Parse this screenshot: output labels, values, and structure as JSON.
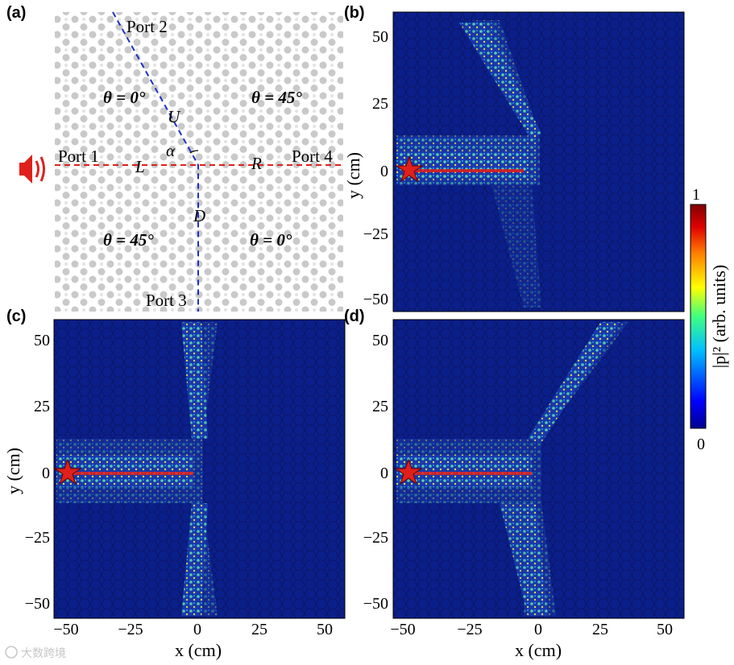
{
  "figure": {
    "panel_labels": [
      "(a)",
      "(b)",
      "(c)",
      "(d)"
    ],
    "ports": {
      "p1": "Port 1",
      "p2": "Port 2",
      "p3": "Port 3",
      "p4": "Port 4"
    },
    "domains": {
      "ul": "θ = 0°",
      "ur": "θ = 45°",
      "ll": "θ = 45°",
      "lr": "θ = 0°"
    },
    "branch_labels": {
      "up": "U",
      "left": "L",
      "right": "R",
      "down": "D",
      "angle": "α"
    },
    "colorbar": {
      "max_label": "1",
      "min_label": "0",
      "label": "|p|² (arb. units)",
      "colors": [
        "#00008f",
        "#0040ff",
        "#00c0ff",
        "#40ff80",
        "#ffff00",
        "#ff8000",
        "#c00000",
        "#800000"
      ]
    },
    "axes": {
      "xlabel": "x (cm)",
      "ylabel": "y (cm)",
      "xticks": [
        "−50",
        "−25",
        "0",
        "25",
        "50"
      ],
      "yticks": [
        "50",
        "25",
        "0",
        "−25",
        "−50"
      ]
    },
    "watermark": "大数跨境",
    "colors": {
      "background": "#0b1f8a",
      "wave": "#31b6e0",
      "source": "#e0201b",
      "guide_red": "#e0201b",
      "guide_blue": "#1c2fc7",
      "lattice": "#c8c8c8"
    }
  },
  "chart_data": [
    {
      "type": "heatmap",
      "panel": "(b)",
      "title": "",
      "xlabel": "",
      "ylabel": "y (cm)",
      "xlim": [
        -60,
        60
      ],
      "ylim": [
        -55,
        60
      ],
      "source": [
        -50,
        0
      ],
      "path": "input Port 1 → Port 2 (upper-left branch)",
      "vmin": 0,
      "vmax": 1
    },
    {
      "type": "heatmap",
      "panel": "(c)",
      "title": "",
      "xlabel": "x (cm)",
      "ylabel": "y (cm)",
      "xlim": [
        -60,
        60
      ],
      "ylim": [
        -55,
        60
      ],
      "source": [
        -50,
        0
      ],
      "path": "input Port 1 → Port 2 and Port 3",
      "vmin": 0,
      "vmax": 1
    },
    {
      "type": "heatmap",
      "panel": "(d)",
      "title": "",
      "xlabel": "x (cm)",
      "ylabel": "",
      "xlim": [
        -60,
        60
      ],
      "ylim": [
        -55,
        60
      ],
      "source": [
        -50,
        0
      ],
      "path": "input Port 1 → upper-right and lower-left branches",
      "vmin": 0,
      "vmax": 1
    }
  ]
}
